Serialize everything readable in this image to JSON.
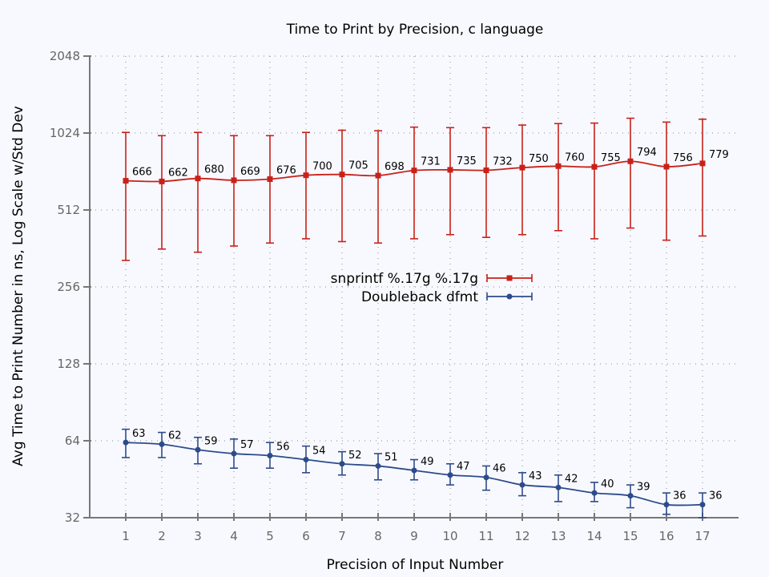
{
  "chart_data": {
    "type": "line",
    "title": "Time to Print by Precision, c language",
    "xlabel": "Precision of Input Number",
    "ylabel": "Avg Time to Print Number in ns, Log Scale w/Std Dev",
    "y_scale": "log2",
    "ylim": [
      32,
      2048
    ],
    "y_ticks": [
      32,
      64,
      128,
      256,
      512,
      1024,
      2048
    ],
    "x": [
      1,
      2,
      3,
      4,
      5,
      6,
      7,
      8,
      9,
      10,
      11,
      12,
      13,
      14,
      15,
      16,
      17
    ],
    "xlim": [
      0,
      18
    ],
    "grid": true,
    "legend_position": "center",
    "series": [
      {
        "name": "snprintf %.17g %.17g",
        "color": "#c8211a",
        "marker": "square",
        "values": [
          666,
          662,
          680,
          669,
          676,
          700,
          705,
          698,
          731,
          735,
          732,
          750,
          760,
          755,
          794,
          756,
          779
        ],
        "err_low": [
          325,
          360,
          350,
          370,
          380,
          395,
          385,
          380,
          395,
          410,
          400,
          410,
          425,
          395,
          435,
          390,
          405
        ],
        "err_high": [
          1030,
          1000,
          1030,
          1000,
          1000,
          1030,
          1050,
          1045,
          1080,
          1075,
          1075,
          1100,
          1115,
          1120,
          1170,
          1130,
          1160
        ]
      },
      {
        "name": "Doubleback dfmt",
        "color": "#2d4b8a",
        "marker": "circle",
        "values": [
          63,
          62,
          59,
          57,
          56,
          54,
          52,
          51,
          49,
          47,
          46,
          43,
          42,
          40,
          39,
          36,
          36
        ],
        "err_low": [
          55,
          55,
          52,
          50,
          50,
          48,
          47,
          45,
          45,
          43,
          41,
          39,
          37,
          37,
          35,
          33,
          32
        ],
        "err_high": [
          71,
          69,
          66,
          65,
          63,
          61,
          58,
          57,
          54,
          52,
          51,
          48,
          47,
          44,
          43,
          40,
          40
        ]
      }
    ]
  }
}
